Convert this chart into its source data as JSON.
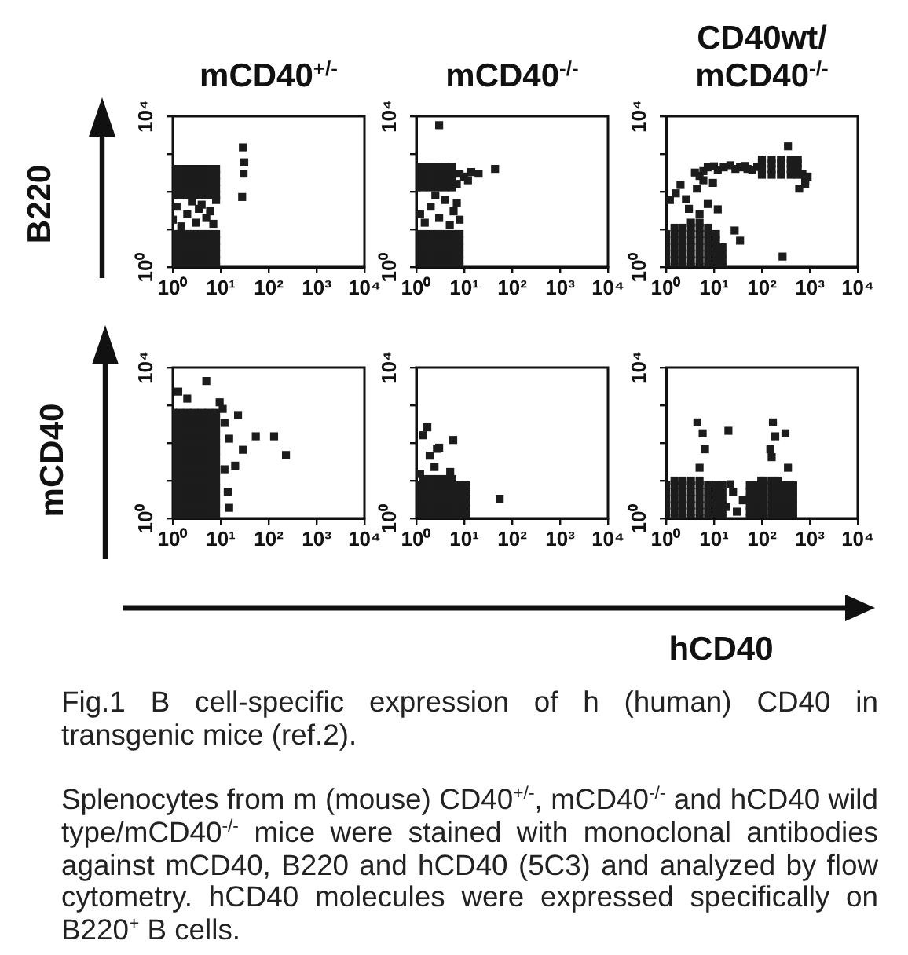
{
  "chart_data": [
    {
      "type": "scatter",
      "title": "mCD40$^{+/-}$",
      "ylabel": "B220",
      "color": "#1c1c1c",
      "marker": "square",
      "log": "xy",
      "xlim": [
        1,
        10000
      ],
      "ylim": [
        1,
        10000
      ],
      "xticks": [
        {
          "value": 1,
          "label": "10⁰"
        },
        {
          "value": 10,
          "label": "10¹"
        },
        {
          "value": 100,
          "label": "10²"
        },
        {
          "value": 1000,
          "label": "10³"
        },
        {
          "value": 10000,
          "label": "10⁴"
        }
      ],
      "yticks": [
        {
          "value": 1,
          "label": "10⁰"
        },
        {
          "value": 10,
          "label": null
        },
        {
          "value": 100,
          "label": null
        },
        {
          "value": 1000,
          "label": null
        },
        {
          "value": 10000,
          "label": "10⁴"
        }
      ],
      "x": [
        1,
        1,
        1,
        1,
        1,
        1,
        1.4,
        1.4,
        1.4,
        1.4,
        1.4,
        1.4,
        2,
        2,
        2,
        2,
        2,
        2,
        2.8,
        2.8,
        2.8,
        2.8,
        2.8,
        2.8,
        4,
        4,
        4,
        4,
        4,
        4,
        5.6,
        5.6,
        5.6,
        5.6,
        5.6,
        5.6,
        8,
        8,
        8,
        8,
        8,
        8,
        1,
        1,
        1,
        1,
        1,
        1.4,
        1.4,
        1.4,
        1.4,
        1.4,
        2,
        2,
        2,
        2,
        2,
        2.8,
        2.8,
        2.8,
        2.8,
        2.8,
        4,
        4,
        4,
        4,
        4,
        5.6,
        5.6,
        5.6,
        5.6,
        5.6,
        8,
        8,
        8,
        8,
        8,
        1.5,
        3,
        5,
        2,
        6,
        1.2,
        4,
        2.5,
        7,
        3.5,
        1,
        8,
        29,
        31,
        30,
        28
      ],
      "values": [
        1,
        1.5,
        2.2,
        3.3,
        5,
        7.5,
        1,
        1.5,
        2.2,
        3.3,
        5,
        7.5,
        1,
        1.5,
        2.2,
        3.3,
        5,
        7.5,
        1,
        1.5,
        2.2,
        3.3,
        5,
        7.5,
        1,
        1.5,
        2.2,
        3.3,
        5,
        7.5,
        1,
        1.5,
        2.2,
        3.3,
        5,
        7.5,
        1,
        1.5,
        2.2,
        3.3,
        5,
        7.5,
        80,
        120,
        180,
        270,
        400,
        80,
        120,
        180,
        270,
        400,
        80,
        120,
        180,
        270,
        400,
        80,
        120,
        180,
        270,
        400,
        80,
        120,
        180,
        270,
        400,
        80,
        120,
        180,
        270,
        400,
        80,
        120,
        180,
        270,
        400,
        12,
        15,
        20,
        25,
        30,
        40,
        45,
        55,
        14,
        35,
        18,
        60,
        1500,
        600,
        300,
        72
      ]
    },
    {
      "type": "scatter",
      "title": "mCD40$^{-/-}$",
      "color": "#1c1c1c",
      "marker": "square",
      "log": "xy",
      "xlim": [
        1,
        10000
      ],
      "ylim": [
        1,
        10000
      ],
      "xticks": [
        {
          "value": 1,
          "label": "10⁰"
        },
        {
          "value": 10,
          "label": "10¹"
        },
        {
          "value": 100,
          "label": "10²"
        },
        {
          "value": 1000,
          "label": "10³"
        },
        {
          "value": 10000,
          "label": "10⁴"
        }
      ],
      "yticks": [
        {
          "value": 1,
          "label": "10⁰"
        },
        {
          "value": 10,
          "label": null
        },
        {
          "value": 100,
          "label": null
        },
        {
          "value": 1000,
          "label": null
        },
        {
          "value": 10000,
          "label": "10⁴"
        }
      ],
      "x": [
        1,
        1,
        1,
        1,
        1,
        1,
        1.4,
        1.4,
        1.4,
        1.4,
        1.4,
        1.4,
        2,
        2,
        2,
        2,
        2,
        2,
        2.8,
        2.8,
        2.8,
        2.8,
        2.8,
        2.8,
        4,
        4,
        4,
        4,
        4,
        4,
        5.6,
        5.6,
        5.6,
        5.6,
        5.6,
        5.6,
        8,
        8,
        8,
        8,
        8,
        8,
        1,
        1,
        1,
        1,
        1.4,
        1.4,
        1.4,
        1.4,
        2,
        2,
        2,
        2,
        2.8,
        2.8,
        2.8,
        2.8,
        4,
        4,
        4,
        4,
        5.6,
        5.6,
        5.6,
        5.6,
        8,
        10,
        14,
        12,
        20,
        44,
        3,
        7,
        1.5,
        3,
        5,
        2,
        4,
        6,
        2.5,
        1.2,
        8,
        7
      ],
      "values": [
        1,
        1.5,
        2.2,
        3.3,
        5,
        7.5,
        1,
        1.5,
        2.2,
        3.3,
        5,
        7.5,
        1,
        1.5,
        2.2,
        3.3,
        5,
        7.5,
        1,
        1.5,
        2.2,
        3.3,
        5,
        7.5,
        1,
        1.5,
        2.2,
        3.3,
        5,
        7.5,
        1,
        1.5,
        2.2,
        3.3,
        5,
        7.5,
        1,
        1.5,
        2.2,
        3.3,
        5,
        7.5,
        130,
        200,
        300,
        450,
        130,
        200,
        300,
        450,
        130,
        200,
        300,
        450,
        130,
        200,
        300,
        450,
        130,
        200,
        300,
        450,
        130,
        200,
        300,
        450,
        300,
        250,
        330,
        200,
        300,
        400,
        5800,
        160,
        15,
        20,
        13,
        40,
        60,
        30,
        80,
        25,
        18,
        50
      ]
    },
    {
      "type": "scatter",
      "title": "CD40wt/mCD40$^{-/-}$",
      "color": "#1c1c1c",
      "marker": "square",
      "log": "xy",
      "xlim": [
        1,
        10000
      ],
      "ylim": [
        1,
        10000
      ],
      "xticks": [
        {
          "value": 1,
          "label": "10⁰"
        },
        {
          "value": 10,
          "label": "10¹"
        },
        {
          "value": 100,
          "label": "10²"
        },
        {
          "value": 1000,
          "label": "10³"
        },
        {
          "value": 10000,
          "label": "10⁴"
        }
      ],
      "yticks": [
        {
          "value": 1,
          "label": "10⁰"
        },
        {
          "value": 10,
          "label": null
        },
        {
          "value": 100,
          "label": null
        },
        {
          "value": 1000,
          "label": null
        },
        {
          "value": 10000,
          "label": "10⁴"
        }
      ],
      "x": [
        1,
        1,
        1,
        1,
        1,
        1,
        1.5,
        1.5,
        1.5,
        1.5,
        1.5,
        1.5,
        2.2,
        2.2,
        2.2,
        2.2,
        2.2,
        2.2,
        3.3,
        3.3,
        3.3,
        3.3,
        3.3,
        3.3,
        5,
        5,
        5,
        5,
        5,
        5,
        7.5,
        7.5,
        7.5,
        7.5,
        7.5,
        7.5,
        11,
        11,
        11,
        11,
        11,
        11,
        15,
        15,
        15,
        15,
        1.5,
        2.2,
        3.3,
        5,
        7.5,
        3.3,
        5,
        4,
        7.4,
        16,
        35,
        63,
        10,
        12,
        22,
        28,
        45,
        50,
        80,
        6,
        5,
        100,
        100,
        100,
        100,
        160,
        160,
        160,
        160,
        250,
        250,
        250,
        250,
        400,
        400,
        400,
        400,
        560,
        560,
        560,
        560,
        800,
        800,
        600,
        700,
        900,
        1.6,
        2.6,
        4.4,
        7.4,
        9.5,
        12,
        3,
        2,
        27,
        35,
        270,
        6,
        1.2,
        5,
        350
      ],
      "values": [
        1,
        1.5,
        2.2,
        3.3,
        5,
        7.5,
        1,
        1.5,
        2.2,
        3.3,
        5,
        7.5,
        1,
        1.5,
        2.2,
        3.3,
        5,
        7.5,
        1,
        1.5,
        2.2,
        3.3,
        5,
        7.5,
        1,
        1.5,
        2.2,
        3.3,
        5,
        7.5,
        1,
        1.5,
        2.2,
        3.3,
        5,
        7.5,
        1,
        1.5,
        2.2,
        3.3,
        5,
        7.5,
        1,
        1.5,
        2.2,
        3.3,
        11,
        11,
        11,
        11,
        11,
        15,
        15,
        320,
        440,
        440,
        440,
        370,
        470,
        380,
        500,
        400,
        480,
        400,
        450,
        350,
        260,
        280,
        400,
        560,
        710,
        280,
        400,
        560,
        710,
        280,
        400,
        560,
        710,
        280,
        400,
        560,
        710,
        280,
        400,
        560,
        710,
        200,
        160,
        120,
        300,
        250,
        90,
        63,
        120,
        47,
        170,
        34,
        35,
        150,
        9.3,
        5,
        1.9,
        200,
        60,
        25,
        1600
      ]
    },
    {
      "type": "scatter",
      "ylabel": "mCD40",
      "color": "#1c1c1c",
      "marker": "square",
      "log": "xy",
      "xlim": [
        1,
        10000
      ],
      "ylim": [
        1,
        10000
      ],
      "xticks": [
        {
          "value": 1,
          "label": "10⁰"
        },
        {
          "value": 10,
          "label": "10¹"
        },
        {
          "value": 100,
          "label": "10²"
        },
        {
          "value": 1000,
          "label": "10³"
        },
        {
          "value": 10000,
          "label": "10⁴"
        }
      ],
      "yticks": [
        {
          "value": 1,
          "label": "10⁰"
        },
        {
          "value": 10,
          "label": null
        },
        {
          "value": 100,
          "label": null
        },
        {
          "value": 1000,
          "label": null
        },
        {
          "value": 10000,
          "label": "10⁴"
        }
      ],
      "x": [
        1,
        1,
        1,
        1,
        1,
        1,
        1,
        1,
        1,
        1,
        1,
        1,
        1,
        1,
        1,
        1.4,
        1.4,
        1.4,
        1.4,
        1.4,
        1.4,
        1.4,
        1.4,
        1.4,
        1.4,
        1.4,
        1.4,
        1.4,
        1.4,
        1.4,
        2,
        2,
        2,
        2,
        2,
        2,
        2,
        2,
        2,
        2,
        2,
        2,
        2,
        2,
        2,
        2.8,
        2.8,
        2.8,
        2.8,
        2.8,
        2.8,
        2.8,
        2.8,
        2.8,
        2.8,
        2.8,
        2.8,
        2.8,
        2.8,
        2.8,
        4,
        4,
        4,
        4,
        4,
        4,
        4,
        4,
        4,
        4,
        4,
        4,
        4,
        4,
        4,
        5.6,
        5.6,
        5.6,
        5.6,
        5.6,
        5.6,
        5.6,
        5.6,
        5.6,
        5.6,
        5.6,
        5.6,
        5.6,
        5.6,
        5.6,
        8,
        8,
        8,
        8,
        8,
        8,
        8,
        8,
        8,
        8,
        8,
        8,
        8,
        8,
        8,
        1.3,
        5,
        2,
        9.5,
        12,
        15,
        23,
        29,
        54,
        130,
        230,
        20,
        14,
        15,
        11,
        12
      ],
      "values": [
        1,
        1.6,
        2.5,
        4,
        6.3,
        10,
        16,
        25,
        40,
        63,
        100,
        160,
        250,
        400,
        630,
        1,
        1.6,
        2.5,
        4,
        6.3,
        10,
        16,
        25,
        40,
        63,
        100,
        160,
        250,
        400,
        630,
        1,
        1.6,
        2.5,
        4,
        6.3,
        10,
        16,
        25,
        40,
        63,
        100,
        160,
        250,
        400,
        630,
        1,
        1.6,
        2.5,
        4,
        6.3,
        10,
        16,
        25,
        40,
        63,
        100,
        160,
        250,
        400,
        630,
        1,
        1.6,
        2.5,
        4,
        6.3,
        10,
        16,
        25,
        40,
        63,
        100,
        160,
        250,
        400,
        630,
        1,
        1.6,
        2.5,
        4,
        6.3,
        10,
        16,
        25,
        40,
        63,
        100,
        160,
        250,
        400,
        630,
        1,
        1.6,
        2.5,
        4,
        6.3,
        10,
        16,
        25,
        40,
        63,
        100,
        160,
        250,
        400,
        630,
        2300,
        4400,
        1500,
        1200,
        340,
        130,
        550,
        66,
        150,
        150,
        48,
        25,
        5,
        1.9,
        800,
        20
      ]
    },
    {
      "type": "scatter",
      "color": "#1c1c1c",
      "marker": "square",
      "log": "xy",
      "xlim": [
        1,
        10000
      ],
      "ylim": [
        1,
        10000
      ],
      "xticks": [
        {
          "value": 1,
          "label": "10⁰"
        },
        {
          "value": 10,
          "label": "10¹"
        },
        {
          "value": 100,
          "label": "10²"
        },
        {
          "value": 1000,
          "label": "10³"
        },
        {
          "value": 10000,
          "label": "10⁴"
        }
      ],
      "yticks": [
        {
          "value": 1,
          "label": "10⁰"
        },
        {
          "value": 10,
          "label": null
        },
        {
          "value": 100,
          "label": null
        },
        {
          "value": 1000,
          "label": null
        },
        {
          "value": 10000,
          "label": "10⁴"
        }
      ],
      "x": [
        1,
        1,
        1,
        1,
        1,
        1,
        1.4,
        1.4,
        1.4,
        1.4,
        1.4,
        1.4,
        2,
        2,
        2,
        2,
        2,
        2,
        2.8,
        2.8,
        2.8,
        2.8,
        2.8,
        2.8,
        4,
        4,
        4,
        4,
        4,
        4,
        5.6,
        5.6,
        5.6,
        5.6,
        5.6,
        5.6,
        8,
        8,
        8,
        8,
        8,
        8,
        11,
        11,
        11,
        11,
        11,
        11,
        1.4,
        2,
        2.8,
        4,
        5.6,
        1.7,
        2.7,
        5.9,
        1.9,
        2.4,
        5.1,
        55,
        1.4,
        3,
        1.2
      ],
      "values": [
        1,
        1.5,
        2.2,
        3.3,
        5,
        7.5,
        1,
        1.5,
        2.2,
        3.3,
        5,
        7.5,
        1,
        1.5,
        2.2,
        3.3,
        5,
        7.5,
        1,
        1.5,
        2.2,
        3.3,
        5,
        7.5,
        1,
        1.5,
        2.2,
        3.3,
        5,
        7.5,
        1,
        1.5,
        2.2,
        3.3,
        5,
        7.5,
        1,
        1.5,
        2.2,
        3.3,
        5,
        7.5,
        1,
        1.5,
        2.2,
        3.3,
        5,
        7.5,
        11,
        11,
        11,
        11,
        11,
        260,
        70,
        120,
        46,
        23,
        17,
        3.3,
        160,
        75,
        15
      ]
    },
    {
      "type": "scatter",
      "xlabel": "hCD40",
      "color": "#1c1c1c",
      "marker": "square",
      "log": "xy",
      "xlim": [
        1,
        10000
      ],
      "ylim": [
        1,
        10000
      ],
      "xticks": [
        {
          "value": 1,
          "label": "10⁰"
        },
        {
          "value": 10,
          "label": "10¹"
        },
        {
          "value": 100,
          "label": "10²"
        },
        {
          "value": 1000,
          "label": "10³"
        },
        {
          "value": 10000,
          "label": "10⁴"
        }
      ],
      "yticks": [
        {
          "value": 1,
          "label": "10⁰"
        },
        {
          "value": 10,
          "label": null
        },
        {
          "value": 100,
          "label": null
        },
        {
          "value": 1000,
          "label": null
        },
        {
          "value": 10000,
          "label": "10⁴"
        }
      ],
      "x": [
        1,
        1,
        1,
        1,
        1,
        1,
        1.5,
        1.5,
        1.5,
        1.5,
        1.5,
        1.5,
        2.2,
        2.2,
        2.2,
        2.2,
        2.2,
        2.2,
        3.3,
        3.3,
        3.3,
        3.3,
        3.3,
        3.3,
        5,
        5,
        5,
        5,
        5,
        5,
        7.5,
        7.5,
        7.5,
        7.5,
        7.5,
        7.5,
        11,
        11,
        11,
        11,
        11,
        11,
        15,
        15,
        15,
        15,
        15,
        15,
        1.5,
        2.2,
        3.3,
        5,
        56,
        56,
        56,
        56,
        56,
        56,
        80,
        80,
        80,
        80,
        80,
        80,
        110,
        110,
        110,
        110,
        110,
        110,
        160,
        160,
        160,
        160,
        160,
        160,
        220,
        220,
        220,
        220,
        220,
        220,
        320,
        320,
        320,
        320,
        320,
        320,
        450,
        450,
        450,
        450,
        450,
        450,
        110,
        160,
        220,
        18,
        25,
        30,
        40,
        22,
        4.5,
        5.8,
        6.5,
        5,
        20,
        170,
        190,
        150,
        160,
        310,
        350,
        97
      ],
      "values": [
        1,
        1.5,
        2.2,
        3.3,
        5,
        7.5,
        1,
        1.5,
        2.2,
        3.3,
        5,
        7.5,
        1,
        1.5,
        2.2,
        3.3,
        5,
        7.5,
        1,
        1.5,
        2.2,
        3.3,
        5,
        7.5,
        1,
        1.5,
        2.2,
        3.3,
        5,
        7.5,
        1,
        1.5,
        2.2,
        3.3,
        5,
        7.5,
        1,
        1.5,
        2.2,
        3.3,
        5,
        7.5,
        1,
        1.5,
        2.2,
        3.3,
        5,
        7.5,
        10,
        10,
        10,
        10,
        1,
        1.5,
        2.2,
        3.3,
        5,
        7.5,
        1,
        1.5,
        2.2,
        3.3,
        5,
        7.5,
        1,
        1.5,
        2.2,
        3.3,
        5,
        7.5,
        1,
        1.5,
        2.2,
        3.3,
        5,
        7.5,
        1,
        1.5,
        2.2,
        3.3,
        5,
        7.5,
        1,
        1.5,
        2.2,
        3.3,
        5,
        7.5,
        1,
        1.5,
        2.2,
        3.3,
        5,
        7.5,
        10,
        10,
        10,
        2,
        5,
        1.5,
        3,
        8,
        350,
        180,
        68,
        22,
        210,
        350,
        150,
        68,
        42,
        180,
        22,
        10
      ],
      "annotations": [
        "Fig.1 B cell-specific expression of h (human) CD40 in transgenic mice (ref.2).",
        "Splenocytes from m (mouse) CD40$^{+/-}$, mCD40$^{-/-}$ and hCD40 wild type/mCD40$^{-/-}$ mice were stained with monoclonal antibodies against mCD40, B220 and hCD40 (5C3) and analyzed by flow cytometry. hCD40 molecules were expressed specifically on B220$^{+}$ B cells."
      ]
    }
  ]
}
